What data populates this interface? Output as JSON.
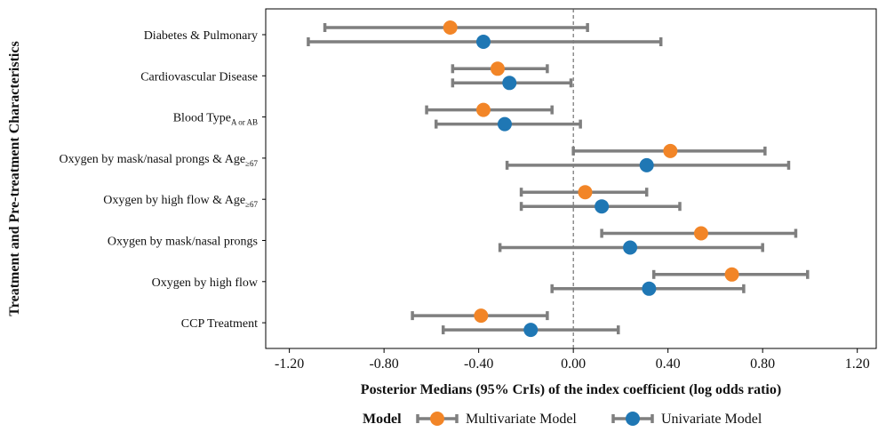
{
  "chart_data": {
    "type": "scatter",
    "chart_style": "forest-plot-with-error-bars",
    "xlabel": "Posterior Medians (95% CrIs) of the index coefficient (log odds ratio)",
    "ylabel": "Treatment and Pre-treatment Characteristics",
    "xlim": [
      -1.3,
      1.28
    ],
    "xticks": [
      -1.2,
      -0.8,
      -0.4,
      0.0,
      0.4,
      0.8,
      1.2
    ],
    "xtick_labels": [
      "-1.20",
      "-0.80",
      "-0.40",
      "0.00",
      "0.40",
      "0.80",
      "1.20"
    ],
    "reference_line_x": 0,
    "grid": false,
    "categories": [
      {
        "label": "Diabetes & Pulmonary",
        "sub": ""
      },
      {
        "label": "Cardiovascular Disease",
        "sub": ""
      },
      {
        "label": "Blood Type",
        "sub": "A or AB"
      },
      {
        "label": "Oxygen by mask/nasal prongs  & Age",
        "sub": "≥67"
      },
      {
        "label": "Oxygen by high flow  & Age",
        "sub": "≥67"
      },
      {
        "label": "Oxygen by mask/nasal prongs",
        "sub": ""
      },
      {
        "label": "Oxygen by high flow",
        "sub": ""
      },
      {
        "label": "CCP Treatment",
        "sub": ""
      }
    ],
    "series": [
      {
        "name": "Multivariate Model",
        "color": "#F28527",
        "median": [
          -0.52,
          -0.32,
          -0.38,
          0.41,
          0.05,
          0.54,
          0.67,
          -0.39
        ],
        "lower": [
          -1.05,
          -0.51,
          -0.62,
          0.0,
          -0.22,
          0.12,
          0.34,
          -0.68
        ],
        "upper": [
          0.06,
          -0.11,
          -0.09,
          0.81,
          0.31,
          0.94,
          0.99,
          -0.11
        ]
      },
      {
        "name": "Univariate Model",
        "color": "#1F77B4",
        "median": [
          -0.38,
          -0.27,
          -0.29,
          0.31,
          0.12,
          0.24,
          0.32,
          -0.18
        ],
        "lower": [
          -1.12,
          -0.51,
          -0.58,
          -0.28,
          -0.22,
          -0.31,
          -0.09,
          -0.55
        ],
        "upper": [
          0.37,
          -0.01,
          0.03,
          0.91,
          0.45,
          0.8,
          0.72,
          0.19
        ]
      }
    ],
    "errorbar_color": "#7F7F7F",
    "legend": {
      "title": "Model",
      "position": "bottom"
    }
  }
}
